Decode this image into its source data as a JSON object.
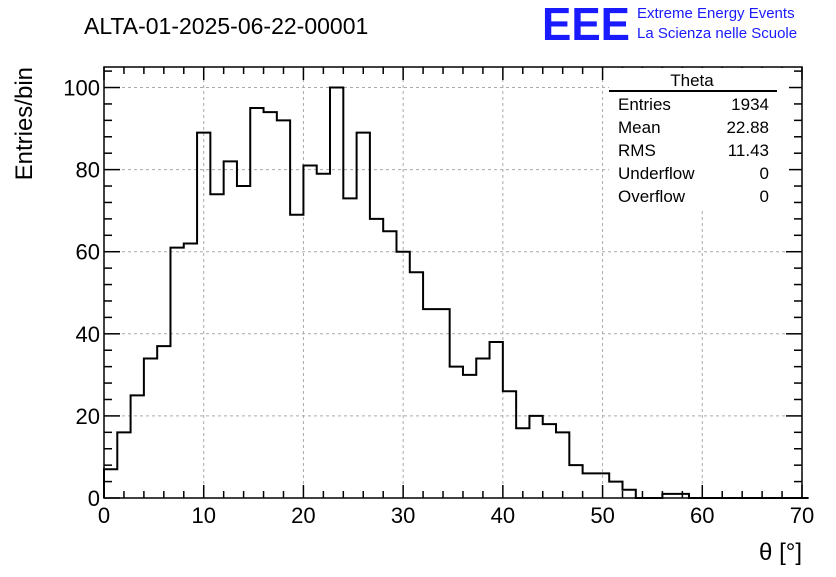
{
  "chart_data": {
    "type": "histogram",
    "title": "ALTA-01-2025-06-22-00001",
    "xlabel": "θ [°]",
    "ylabel": "Entries/bin",
    "xlim": [
      0,
      70
    ],
    "ylim": [
      0,
      105
    ],
    "xticks": [
      "0",
      "10",
      "20",
      "30",
      "40",
      "50",
      "60",
      "70"
    ],
    "yticks": [
      "0",
      "20",
      "40",
      "60",
      "80",
      "100"
    ],
    "grid": true,
    "line_color": "#000000",
    "bin_width": 1.3333,
    "bins_start": 0,
    "values": [
      7,
      16,
      25,
      34,
      37,
      61,
      62,
      89,
      74,
      82,
      76,
      95,
      94,
      92,
      69,
      81,
      79,
      100,
      73,
      89,
      68,
      65,
      60,
      55,
      46,
      46,
      32,
      30,
      34,
      38,
      26,
      17,
      20,
      18,
      16,
      8,
      6,
      6,
      4,
      2,
      0,
      0,
      1,
      1,
      0,
      0,
      0,
      0,
      0,
      0,
      0,
      0,
      0
    ],
    "stats_box": {
      "title": "Theta",
      "rows": [
        {
          "label": "Entries",
          "value": "1934"
        },
        {
          "label": "Mean",
          "value": "22.88"
        },
        {
          "label": "RMS",
          "value": "11.43"
        },
        {
          "label": "Underflow",
          "value": "0"
        },
        {
          "label": "Overflow",
          "value": "0"
        }
      ]
    },
    "logo": {
      "text": "EEE",
      "line1": "Extreme Energy Events",
      "line2": "La Scienza nelle Scuole",
      "color": "#1a1aff"
    }
  }
}
